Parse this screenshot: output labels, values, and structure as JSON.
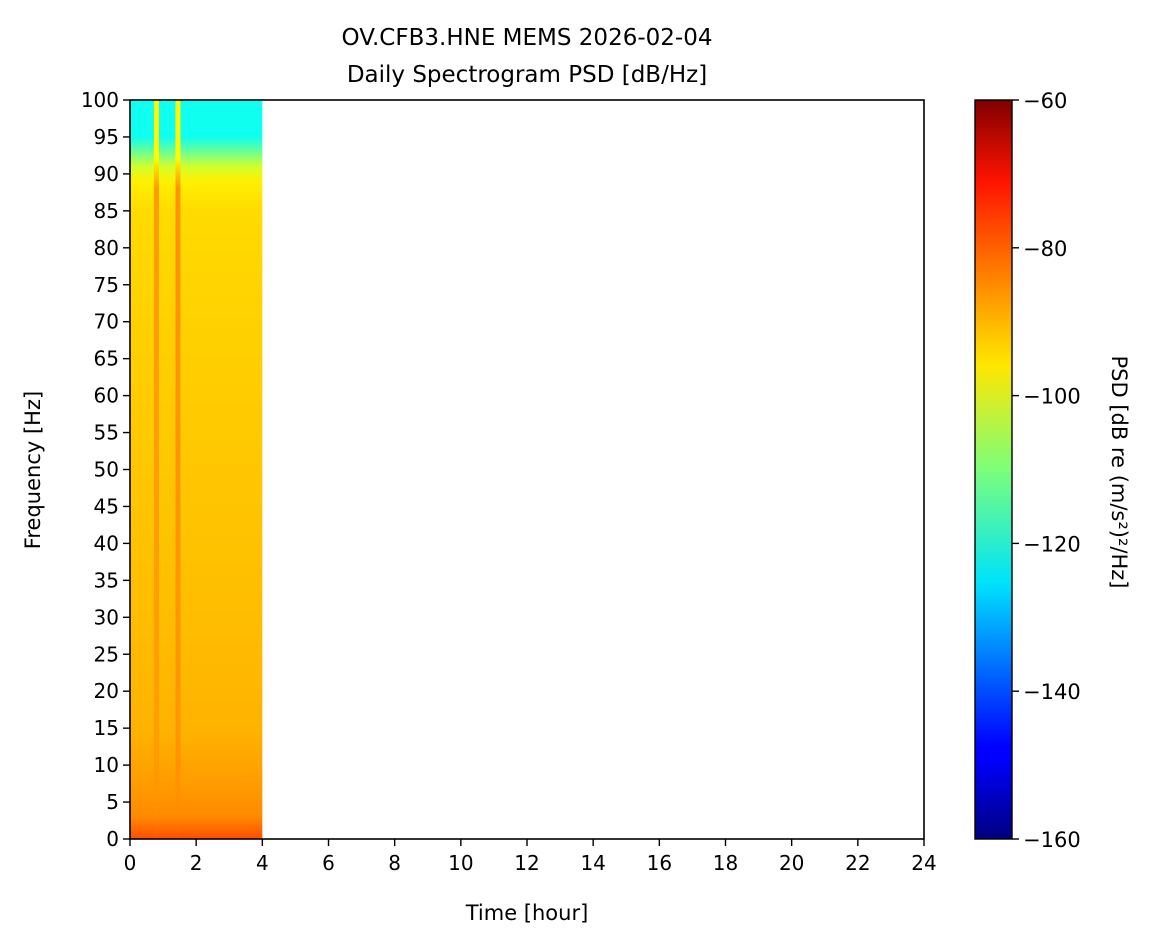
{
  "chart_data": {
    "type": "heatmap",
    "title_line1": "OV.CFB3.HNE MEMS 2026-02-04",
    "title_line2": "Daily Spectrogram PSD [dB/Hz]",
    "xlabel": "Time [hour]",
    "ylabel": "Frequency [Hz]",
    "xlim": [
      0,
      24
    ],
    "ylim": [
      0,
      100
    ],
    "xticks": [
      0,
      2,
      4,
      6,
      8,
      10,
      12,
      14,
      16,
      18,
      20,
      22,
      24
    ],
    "yticks": [
      0,
      5,
      10,
      15,
      20,
      25,
      30,
      35,
      40,
      45,
      50,
      55,
      60,
      65,
      70,
      75,
      80,
      85,
      90,
      95,
      100
    ],
    "data_time_range_hours": [
      0,
      4
    ],
    "psd_profile_by_frequency": [
      {
        "f": 0,
        "db": -80
      },
      {
        "f": 1,
        "db": -82
      },
      {
        "f": 3,
        "db": -86
      },
      {
        "f": 8,
        "db": -88
      },
      {
        "f": 15,
        "db": -90
      },
      {
        "f": 30,
        "db": -91
      },
      {
        "f": 50,
        "db": -92
      },
      {
        "f": 70,
        "db": -93
      },
      {
        "f": 85,
        "db": -94
      },
      {
        "f": 89,
        "db": -96
      },
      {
        "f": 91,
        "db": -102
      },
      {
        "f": 93,
        "db": -112
      },
      {
        "f": 95,
        "db": -121
      },
      {
        "f": 100,
        "db": -121
      }
    ],
    "transient_lines": [
      {
        "time_hour": 0.8,
        "db_low": -87,
        "db_high": -97
      },
      {
        "time_hour": 1.45,
        "db_low": -86,
        "db_high": -97
      }
    ],
    "colorbar": {
      "label": "PSD [dB re (m/s²)²/Hz]",
      "colormap": "jet",
      "vmin": -160,
      "vmax": -60,
      "ticks": [
        -60,
        -80,
        -100,
        -120,
        -140,
        -160
      ],
      "tick_labels": [
        "−60",
        "−80",
        "−100",
        "−120",
        "−140",
        "−160"
      ]
    }
  }
}
